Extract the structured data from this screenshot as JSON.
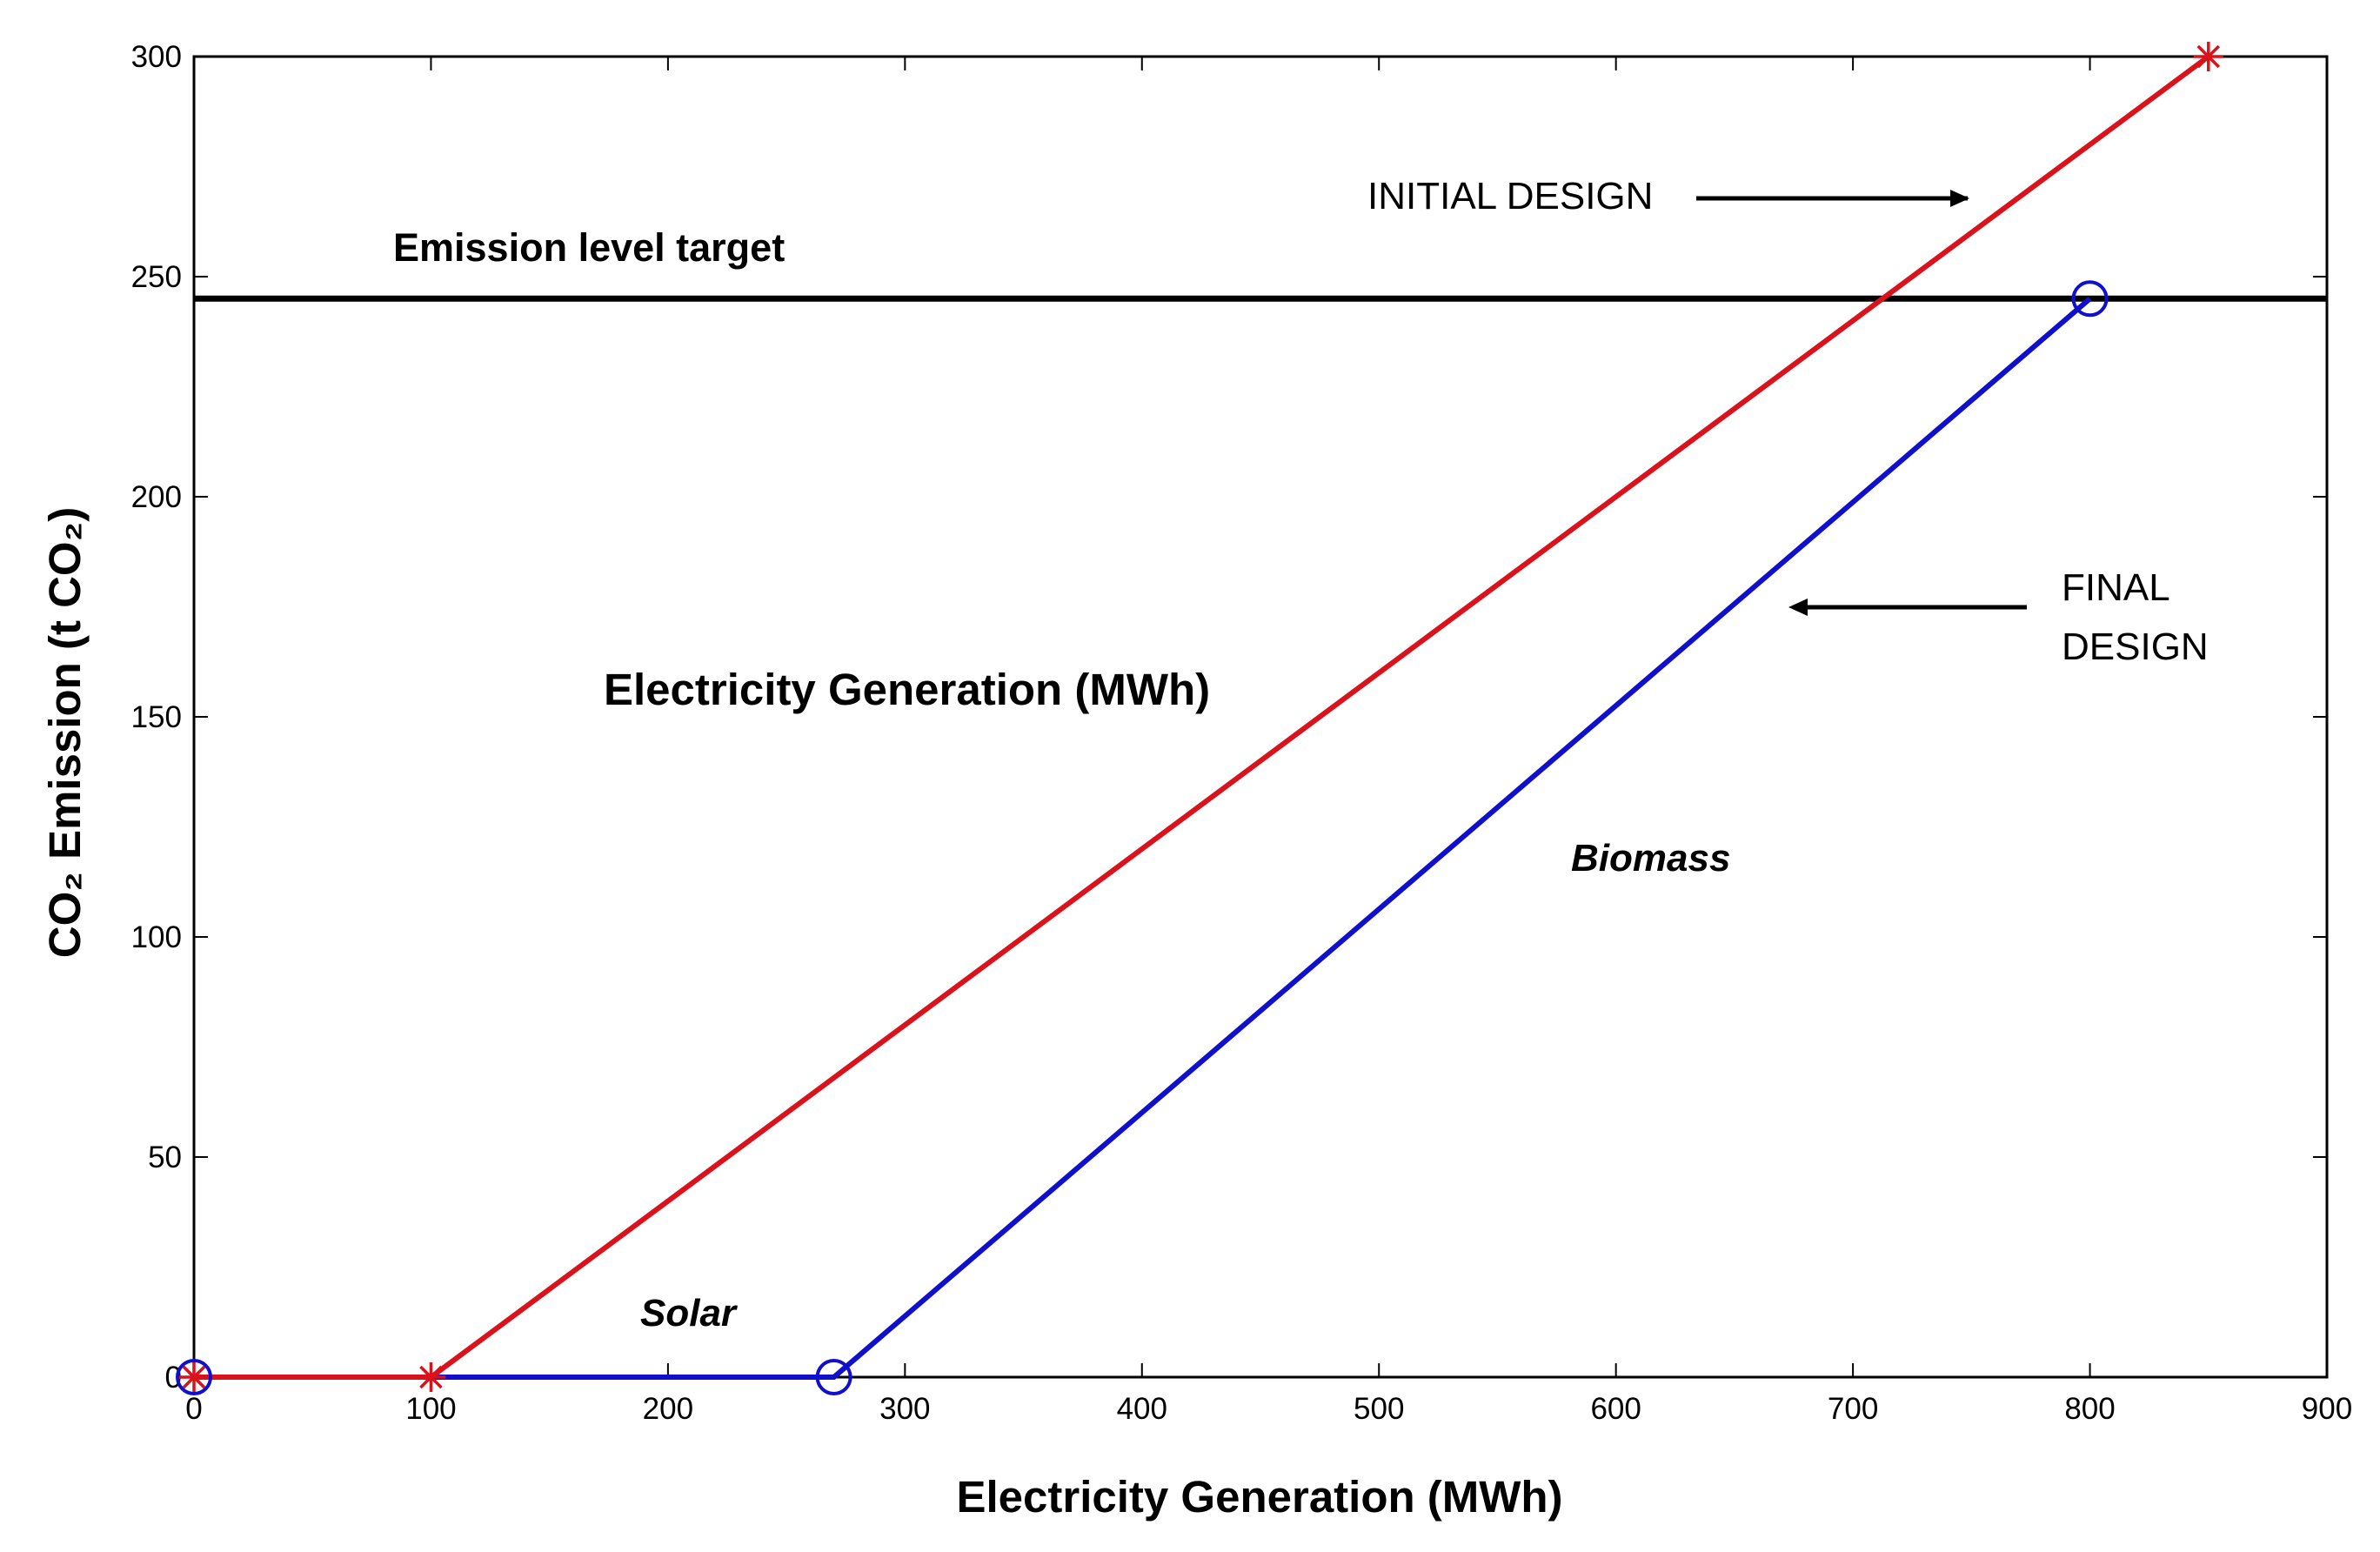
{
  "chart_data": {
    "type": "line",
    "title": "",
    "xlabel": "Electricity Generation (MWh)",
    "ylabel": "CO₂ Emission (t CO₂)",
    "xlim": [
      0,
      900
    ],
    "ylim": [
      0,
      300
    ],
    "xticks": [
      0,
      100,
      200,
      300,
      400,
      500,
      600,
      700,
      800,
      900
    ],
    "yticks": [
      0,
      50,
      100,
      150,
      200,
      250,
      300
    ],
    "xtick_labels": [
      "0",
      "100",
      "200",
      "300",
      "400",
      "500",
      "600",
      "700",
      "800",
      "900"
    ],
    "ytick_labels": [
      "0",
      "50",
      "100",
      "150",
      "200",
      "250",
      "300"
    ],
    "grid": false,
    "series": [
      {
        "name": "INITIAL DESIGN",
        "color": "#d9121b",
        "marker": "asterisk",
        "x": [
          0,
          100,
          850
        ],
        "y": [
          0,
          0,
          300
        ]
      },
      {
        "name": "FINAL DESIGN",
        "color": "#1010cc",
        "marker": "circle",
        "x": [
          0,
          270,
          800
        ],
        "y": [
          0,
          0,
          245
        ]
      }
    ],
    "reference_line": {
      "label": "Emission level target",
      "y": 245,
      "color": "#000000"
    },
    "annotations": {
      "initial_design": "INITIAL DESIGN",
      "final_design_line1": "FINAL",
      "final_design_line2": "DESIGN",
      "middle_label": "Electricity Generation (MWh)",
      "solar": "Solar",
      "biomass": "Biomass"
    }
  }
}
